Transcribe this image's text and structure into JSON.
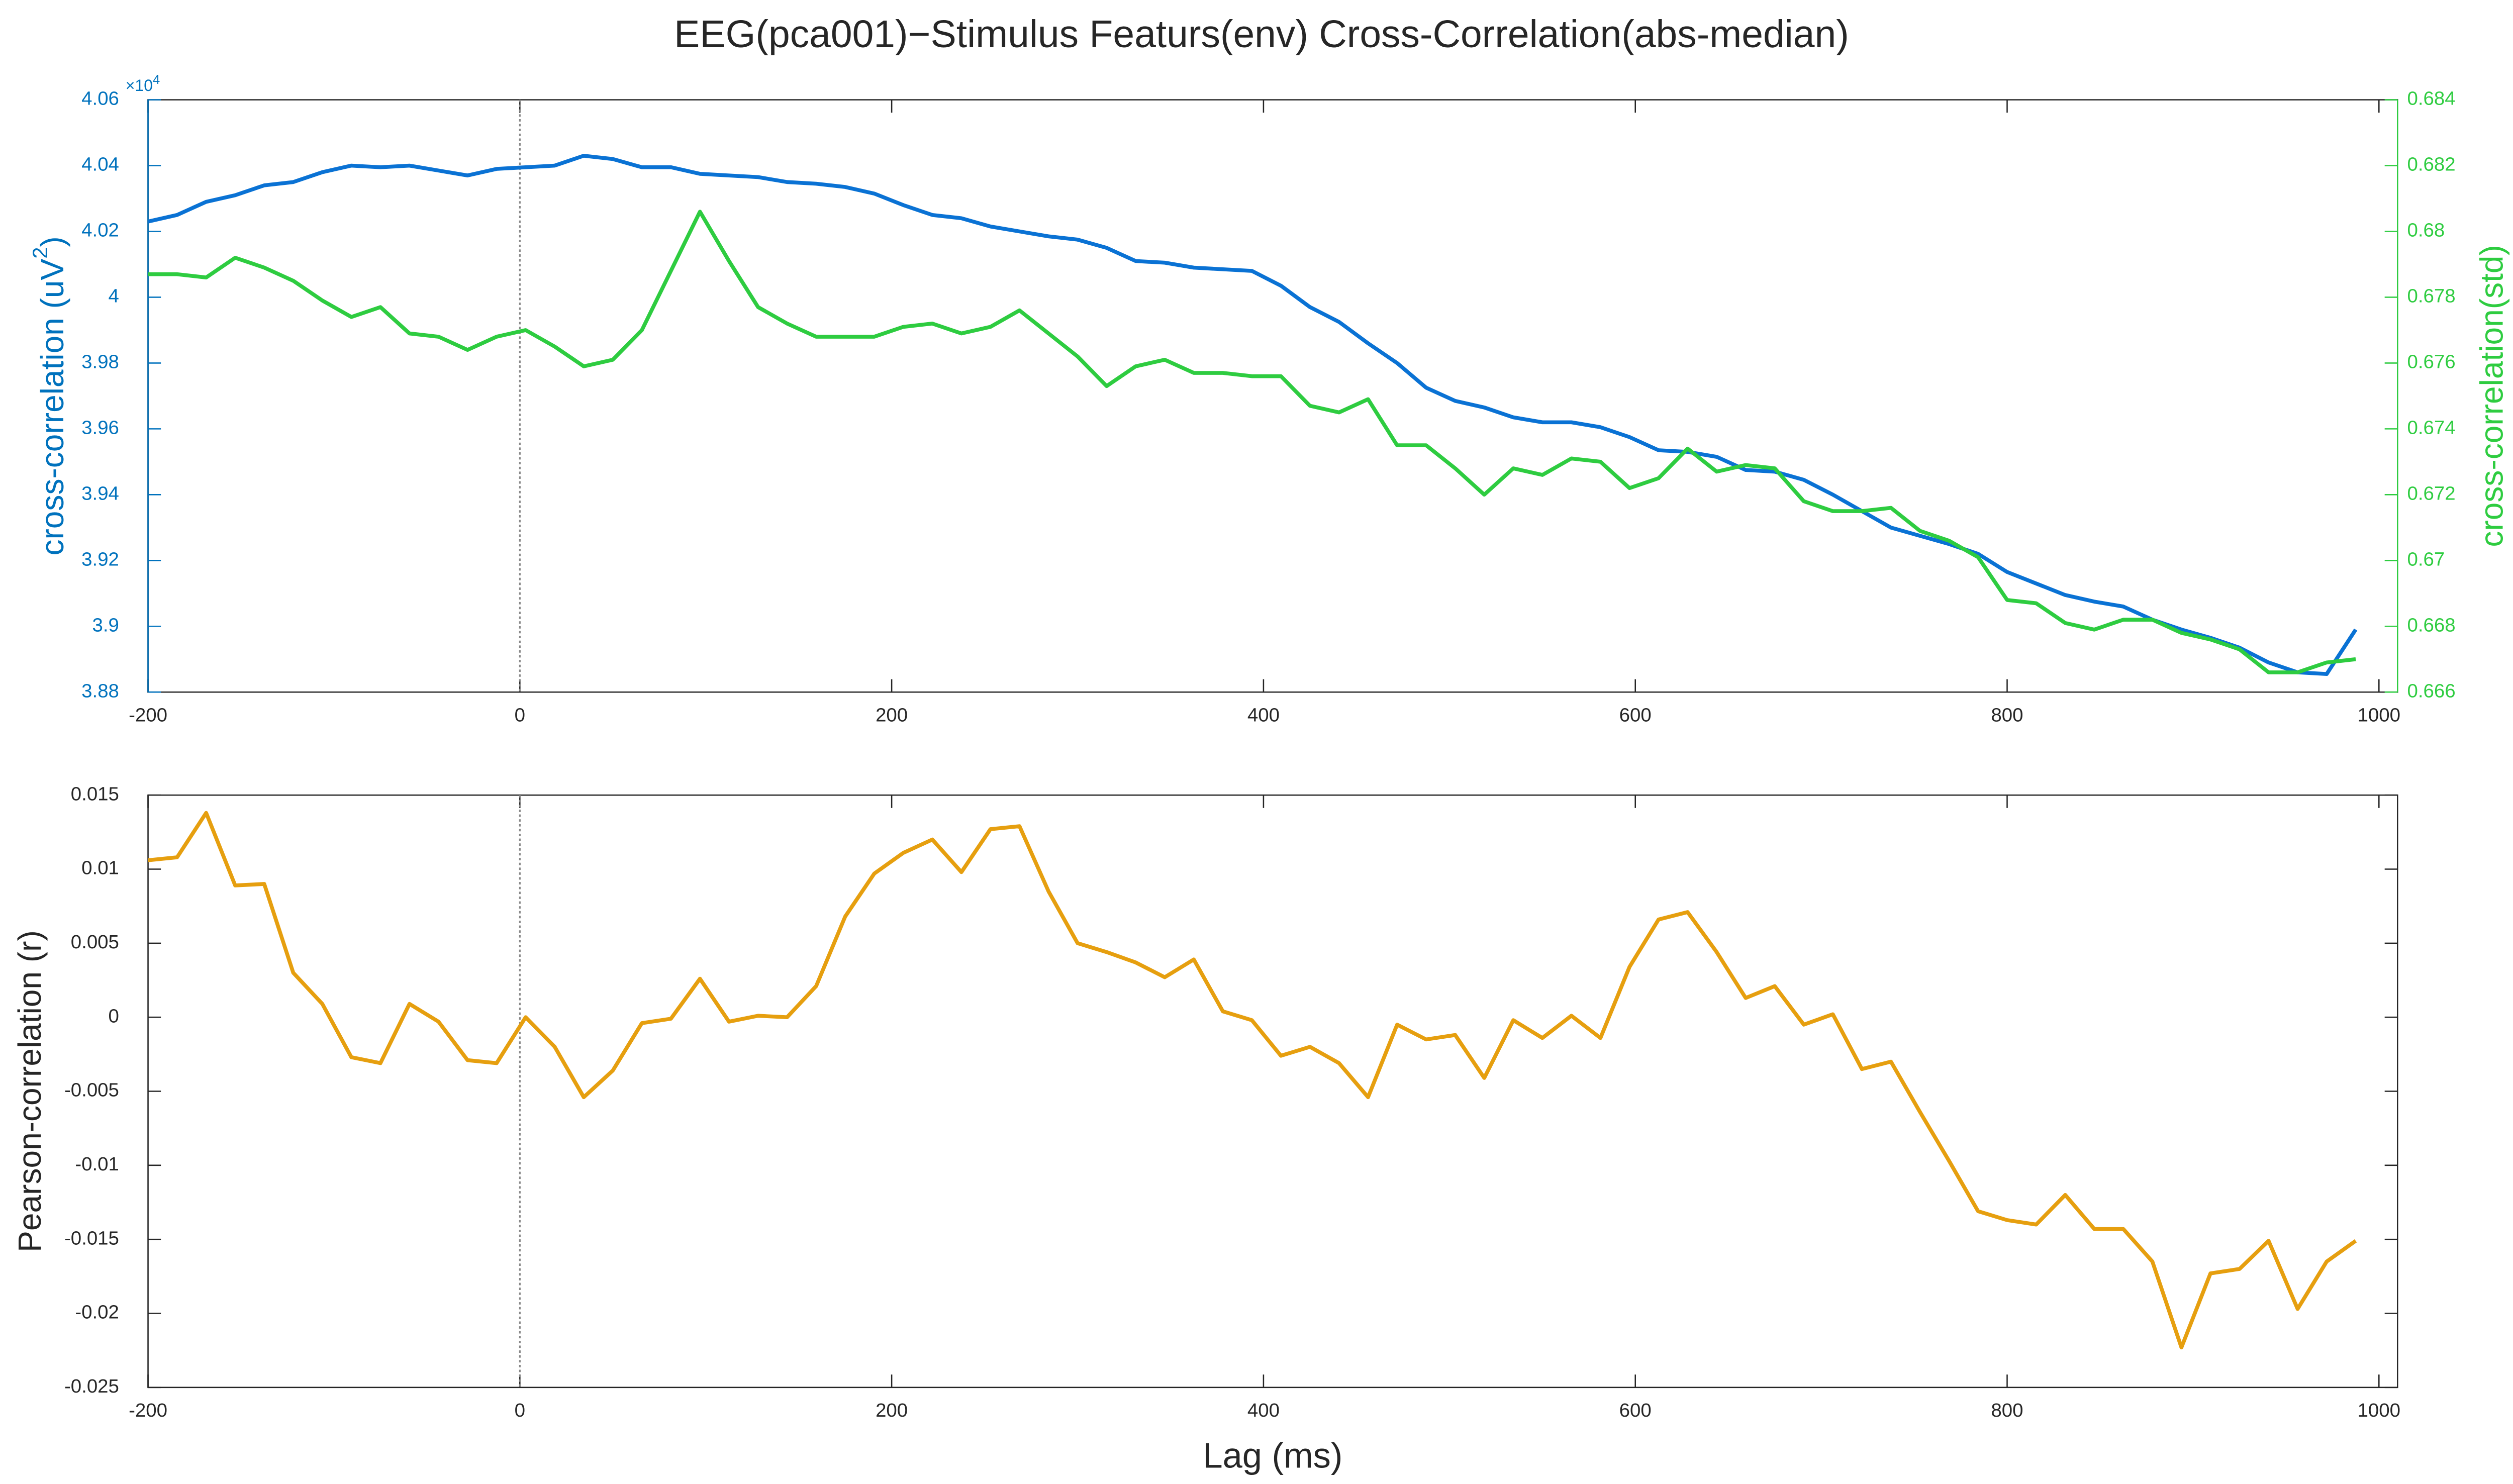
{
  "figure": {
    "title": "EEG(pca001)−Stimulus Featurs(env) Cross-Correlation(abs-median)"
  },
  "chart_data": [
    {
      "type": "line",
      "ylabel": "cross-correlation (uV",
      "ylabel_sup": "2",
      "ylabel_end": ")",
      "y2label": "cross-correlation(std)",
      "y_multiplier": "×10",
      "y_multiplier_exp": "4",
      "xlim": [
        -200,
        1010
      ],
      "xticks": [
        -200,
        0,
        200,
        400,
        600,
        800,
        1000
      ],
      "ylim": [
        3.88,
        4.06
      ],
      "yticks": [
        3.88,
        3.9,
        3.92,
        3.94,
        3.96,
        3.98,
        4,
        4.02,
        4.04,
        4.06
      ],
      "y2lim": [
        0.666,
        0.684
      ],
      "y2ticks": [
        0.666,
        0.668,
        0.67,
        0.672,
        0.674,
        0.676,
        0.678,
        0.68,
        0.682,
        0.684
      ],
      "ycolor": "#0072bd",
      "y2color": "#2ecc40",
      "vline": 0,
      "x": [
        -200,
        -184.375,
        -168.75,
        -153.125,
        -137.5,
        -121.875,
        -106.25,
        -90.625,
        -75,
        -59.375,
        -43.75,
        -28.125,
        -12.5,
        3.125,
        18.75,
        34.375,
        50,
        65.625,
        81.25,
        96.875,
        112.5,
        128.125,
        143.75,
        159.375,
        175,
        190.625,
        206.25,
        221.875,
        237.5,
        253.125,
        268.75,
        284.375,
        300,
        315.625,
        331.25,
        346.875,
        362.5,
        378.125,
        393.75,
        409.375,
        425,
        440.625,
        456.25,
        471.875,
        487.5,
        503.125,
        518.75,
        534.375,
        550,
        565.625,
        581.25,
        596.875,
        612.5,
        628.125,
        643.75,
        659.375,
        675,
        690.625,
        706.25,
        721.875,
        737.5,
        753.125,
        768.75,
        784.375,
        800,
        815.625,
        831.25,
        846.875,
        862.5,
        878.125,
        893.75,
        909.375,
        925,
        940.625,
        956.25,
        971.875,
        987.5
      ],
      "series": [
        {
          "name": "cross-correlation",
          "color": "#0a72d4",
          "axis": "y",
          "values": [
            4.023,
            4.025,
            4.029,
            4.031,
            4.034,
            4.035,
            4.038,
            4.04,
            4.0395,
            4.04,
            4.0385,
            4.037,
            4.039,
            4.0395,
            4.04,
            4.043,
            4.042,
            4.0395,
            4.0395,
            4.0375,
            4.037,
            4.0365,
            4.035,
            4.0345,
            4.0335,
            4.0315,
            4.028,
            4.025,
            4.024,
            4.0215,
            4.02,
            4.0185,
            4.0175,
            4.015,
            4.011,
            4.0105,
            4.009,
            4.0085,
            4.008,
            4.0035,
            3.997,
            3.9925,
            3.986,
            3.98,
            3.9725,
            3.9685,
            3.9665,
            3.9635,
            3.962,
            3.962,
            3.9605,
            3.9575,
            3.9535,
            3.953,
            3.9515,
            3.9475,
            3.947,
            3.9445,
            3.94,
            3.935,
            3.93,
            3.9275,
            3.925,
            3.922,
            3.9165,
            3.913,
            3.9095,
            3.9075,
            3.906,
            3.902,
            3.899,
            3.8965,
            3.8935,
            3.889,
            3.886,
            3.8855,
            3.899
          ]
        },
        {
          "name": "cross-correlation(std)",
          "color": "#2ecc40",
          "axis": "y2",
          "values": [
            0.6787,
            0.6787,
            0.6786,
            0.6792,
            0.6789,
            0.6785,
            0.6779,
            0.6774,
            0.6777,
            0.6769,
            0.6768,
            0.6764,
            0.6768,
            0.677,
            0.6765,
            0.6759,
            0.6761,
            0.677,
            0.6788,
            0.6806,
            0.6791,
            0.6777,
            0.6772,
            0.6768,
            0.6768,
            0.6768,
            0.6771,
            0.6772,
            0.6769,
            0.6771,
            0.6776,
            0.6769,
            0.6762,
            0.6753,
            0.6759,
            0.6761,
            0.6757,
            0.6757,
            0.6756,
            0.6756,
            0.6747,
            0.6745,
            0.6749,
            0.6735,
            0.6735,
            0.6728,
            0.672,
            0.6728,
            0.6726,
            0.6731,
            0.673,
            0.6722,
            0.6725,
            0.6734,
            0.6727,
            0.6729,
            0.6728,
            0.6718,
            0.6715,
            0.6715,
            0.6716,
            0.6709,
            0.6706,
            0.6701,
            0.6688,
            0.6687,
            0.6681,
            0.6679,
            0.6682,
            0.6682,
            0.6678,
            0.6676,
            0.6673,
            0.6666,
            0.6666,
            0.6669,
            0.667
          ]
        }
      ]
    },
    {
      "type": "line",
      "ylabel": "Pearson-correlation (r)",
      "xlabel": "Lag (ms)",
      "xlim": [
        -200,
        1010
      ],
      "xticks": [
        -200,
        0,
        200,
        400,
        600,
        800,
        1000
      ],
      "ylim": [
        -0.025,
        0.015
      ],
      "yticks": [
        -0.025,
        -0.02,
        -0.015,
        -0.01,
        -0.005,
        0,
        0.005,
        0.01,
        0.015
      ],
      "ycolor": "#262626",
      "vline": 0,
      "x": [
        -200,
        -184.375,
        -168.75,
        -153.125,
        -137.5,
        -121.875,
        -106.25,
        -90.625,
        -75,
        -59.375,
        -43.75,
        -28.125,
        -12.5,
        3.125,
        18.75,
        34.375,
        50,
        65.625,
        81.25,
        96.875,
        112.5,
        128.125,
        143.75,
        159.375,
        175,
        190.625,
        206.25,
        221.875,
        237.5,
        253.125,
        268.75,
        284.375,
        300,
        315.625,
        331.25,
        346.875,
        362.5,
        378.125,
        393.75,
        409.375,
        425,
        440.625,
        456.25,
        471.875,
        487.5,
        503.125,
        518.75,
        534.375,
        550,
        565.625,
        581.25,
        596.875,
        612.5,
        628.125,
        643.75,
        659.375,
        675,
        690.625,
        706.25,
        721.875,
        737.5,
        753.125,
        768.75,
        784.375,
        800,
        815.625,
        831.25,
        846.875,
        862.5,
        878.125,
        893.75,
        909.375,
        925,
        940.625,
        956.25,
        971.875,
        987.5
      ],
      "series": [
        {
          "name": "Pearson-correlation",
          "color": "#e69f0f",
          "axis": "y",
          "values": [
            0.0106,
            0.0108,
            0.0138,
            0.0089,
            0.009,
            0.003,
            0.0009,
            -0.0027,
            -0.0031,
            0.0009,
            -0.0003,
            -0.0029,
            -0.0031,
            0,
            -0.002,
            -0.0054,
            -0.0036,
            -0.0004,
            -0.0001,
            0.0026,
            -0.0003,
            0.0001,
            0,
            0.0021,
            0.0068,
            0.0097,
            0.0111,
            0.012,
            0.0098,
            0.0127,
            0.0129,
            0.0085,
            0.005,
            0.0044,
            0.0037,
            0.0027,
            0.0039,
            0.0004,
            -0.0002,
            -0.0026,
            -0.002,
            -0.0031,
            -0.0054,
            -0.0005,
            -0.0015,
            -0.0012,
            -0.0041,
            -0.0002,
            -0.0014,
            0.0001,
            -0.0014,
            0.0034,
            0.0066,
            0.0071,
            0.0044,
            0.0013,
            0.0021,
            -0.0005,
            0.0002,
            -0.0035,
            -0.003,
            -0.0064,
            -0.0097,
            -0.0131,
            -0.0137,
            -0.014,
            -0.012,
            -0.0143,
            -0.0143,
            -0.0165,
            -0.0223,
            -0.0173,
            -0.017,
            -0.0151,
            -0.0197,
            -0.0165,
            -0.0151
          ]
        }
      ]
    }
  ]
}
